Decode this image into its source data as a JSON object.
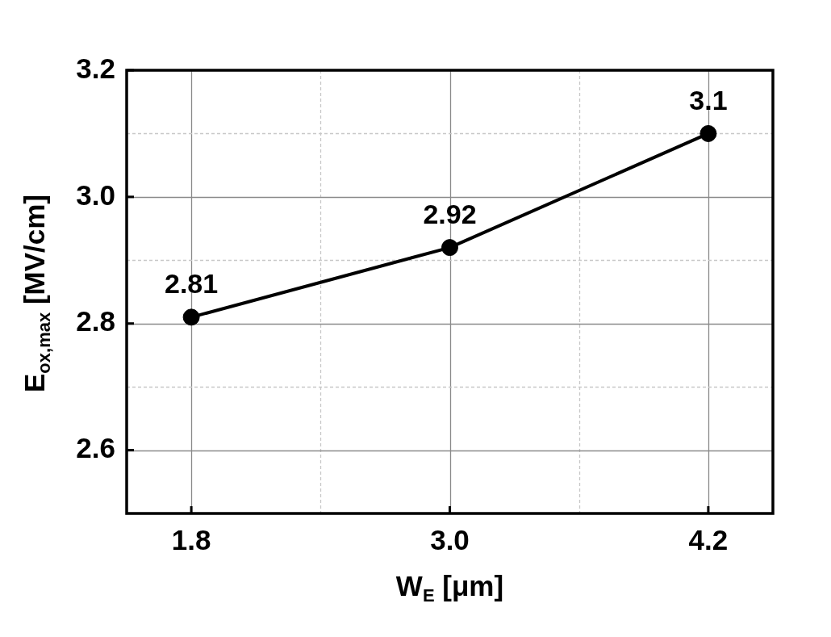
{
  "chart_data": {
    "type": "line",
    "xlabel": "W$_{E}$ [μm]",
    "ylabel": "E$_{ox,max}$ [MV/cm]",
    "x": [
      1.8,
      3,
      4.2
    ],
    "series": [
      {
        "color": "#000000",
        "values": [
          2.81,
          2.92,
          3.1
        ]
      }
    ],
    "xlim": [
      1.5,
      4.5
    ],
    "ylim": [
      2.5,
      3.2
    ],
    "xticks": [
      1.8,
      {
        "value": 2.4,
        "label": null
      },
      {
        "value": 3,
        "label": "3.0"
      },
      {
        "value": 3.6,
        "label": null
      },
      4.2
    ],
    "yticks": [
      2.6,
      {
        "value": 2.7,
        "label": null
      },
      2.8,
      {
        "value": 2.9,
        "label": null
      },
      {
        "value": 3,
        "label": "3.0"
      },
      {
        "value": 3.1,
        "label": null
      },
      3.2
    ],
    "grid": true,
    "marker": "circle",
    "line_style": "solid",
    "data_labels": true
  }
}
